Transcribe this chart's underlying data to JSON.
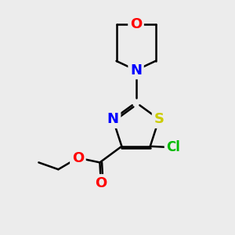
{
  "background_color": "#ececec",
  "atom_colors": {
    "C": "#000000",
    "N": "#0000ff",
    "O": "#ff0000",
    "S": "#cccc00",
    "Cl": "#00bb00"
  },
  "bond_color": "#000000",
  "bond_width": 1.8,
  "font_size_atoms": 13
}
